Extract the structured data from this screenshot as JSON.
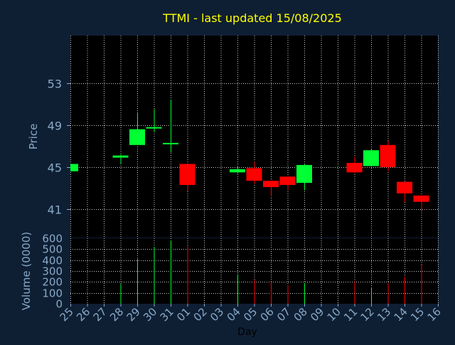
{
  "chart_data": {
    "type": "candlestick",
    "title": "TTMI - last updated 15/08/2025",
    "price_panel": {
      "ylabel": "Price",
      "yticks": [
        41,
        45,
        49,
        53
      ],
      "ylim": [
        38.3,
        57.5
      ]
    },
    "volume_panel": {
      "ylabel": "Volume (0000)",
      "yticks": [
        0,
        100,
        200,
        300,
        400,
        500,
        600
      ],
      "ylim": [
        0,
        600
      ]
    },
    "xlabel": "Day",
    "categories": [
      "25",
      "26",
      "27",
      "28",
      "29",
      "30",
      "31",
      "01",
      "02",
      "03",
      "04",
      "05",
      "06",
      "07",
      "08",
      "09",
      "10",
      "11",
      "12",
      "13",
      "14",
      "15",
      "16"
    ],
    "candles": [
      {
        "day": "25",
        "open": 44.6,
        "high": 45.3,
        "low": 44.6,
        "close": 45.3,
        "volume": null
      },
      {
        "day": "28",
        "open": 45.9,
        "high": 46.2,
        "low": 45.3,
        "close": 46.1,
        "volume": 180
      },
      {
        "day": "29",
        "open": 47.1,
        "high": 50.2,
        "low": 47.1,
        "close": 48.6,
        "volume": 410
      },
      {
        "day": "30",
        "open": 48.7,
        "high": 50.5,
        "low": 48.3,
        "close": 48.8,
        "volume": 520
      },
      {
        "day": "31",
        "open": 47.2,
        "high": 51.4,
        "low": 46.4,
        "close": 47.3,
        "volume": 580
      },
      {
        "day": "01",
        "open": 45.3,
        "high": 45.3,
        "low": 42.7,
        "close": 43.3,
        "volume": 530
      },
      {
        "day": "04",
        "open": 44.5,
        "high": 45.0,
        "low": 44.4,
        "close": 44.8,
        "volume": 270
      },
      {
        "day": "05",
        "open": 44.9,
        "high": 45.5,
        "low": 43.4,
        "close": 43.7,
        "volume": 220
      },
      {
        "day": "06",
        "open": 43.7,
        "high": 43.7,
        "low": 42.2,
        "close": 43.1,
        "volume": 200
      },
      {
        "day": "07",
        "open": 44.1,
        "high": 44.1,
        "low": 42.8,
        "close": 43.3,
        "volume": 170
      },
      {
        "day": "08",
        "open": 43.5,
        "high": 45.3,
        "low": 42.8,
        "close": 45.2,
        "volume": 190
      },
      {
        "day": "11",
        "open": 45.4,
        "high": 46.0,
        "low": 44.4,
        "close": 44.5,
        "volume": 210
      },
      {
        "day": "12",
        "open": 45.1,
        "high": 46.7,
        "low": 45.1,
        "close": 46.6,
        "volume": 150
      },
      {
        "day": "13",
        "open": 47.1,
        "high": 47.5,
        "low": 44.6,
        "close": 45.0,
        "volume": 190
      },
      {
        "day": "14",
        "open": 43.6,
        "high": 43.6,
        "low": 41.7,
        "close": 42.5,
        "volume": 250
      },
      {
        "day": "15",
        "open": 42.3,
        "high": 42.3,
        "low": 40.9,
        "close": 41.7,
        "volume": 360
      }
    ],
    "colors": {
      "up": "#00ff33",
      "down": "#ff0000",
      "background": "#0f1f33",
      "plot_background": "#000000",
      "grid": "#ffffff",
      "title": "#ffff00",
      "tick_text": "#87a9c8"
    },
    "grid": true
  }
}
